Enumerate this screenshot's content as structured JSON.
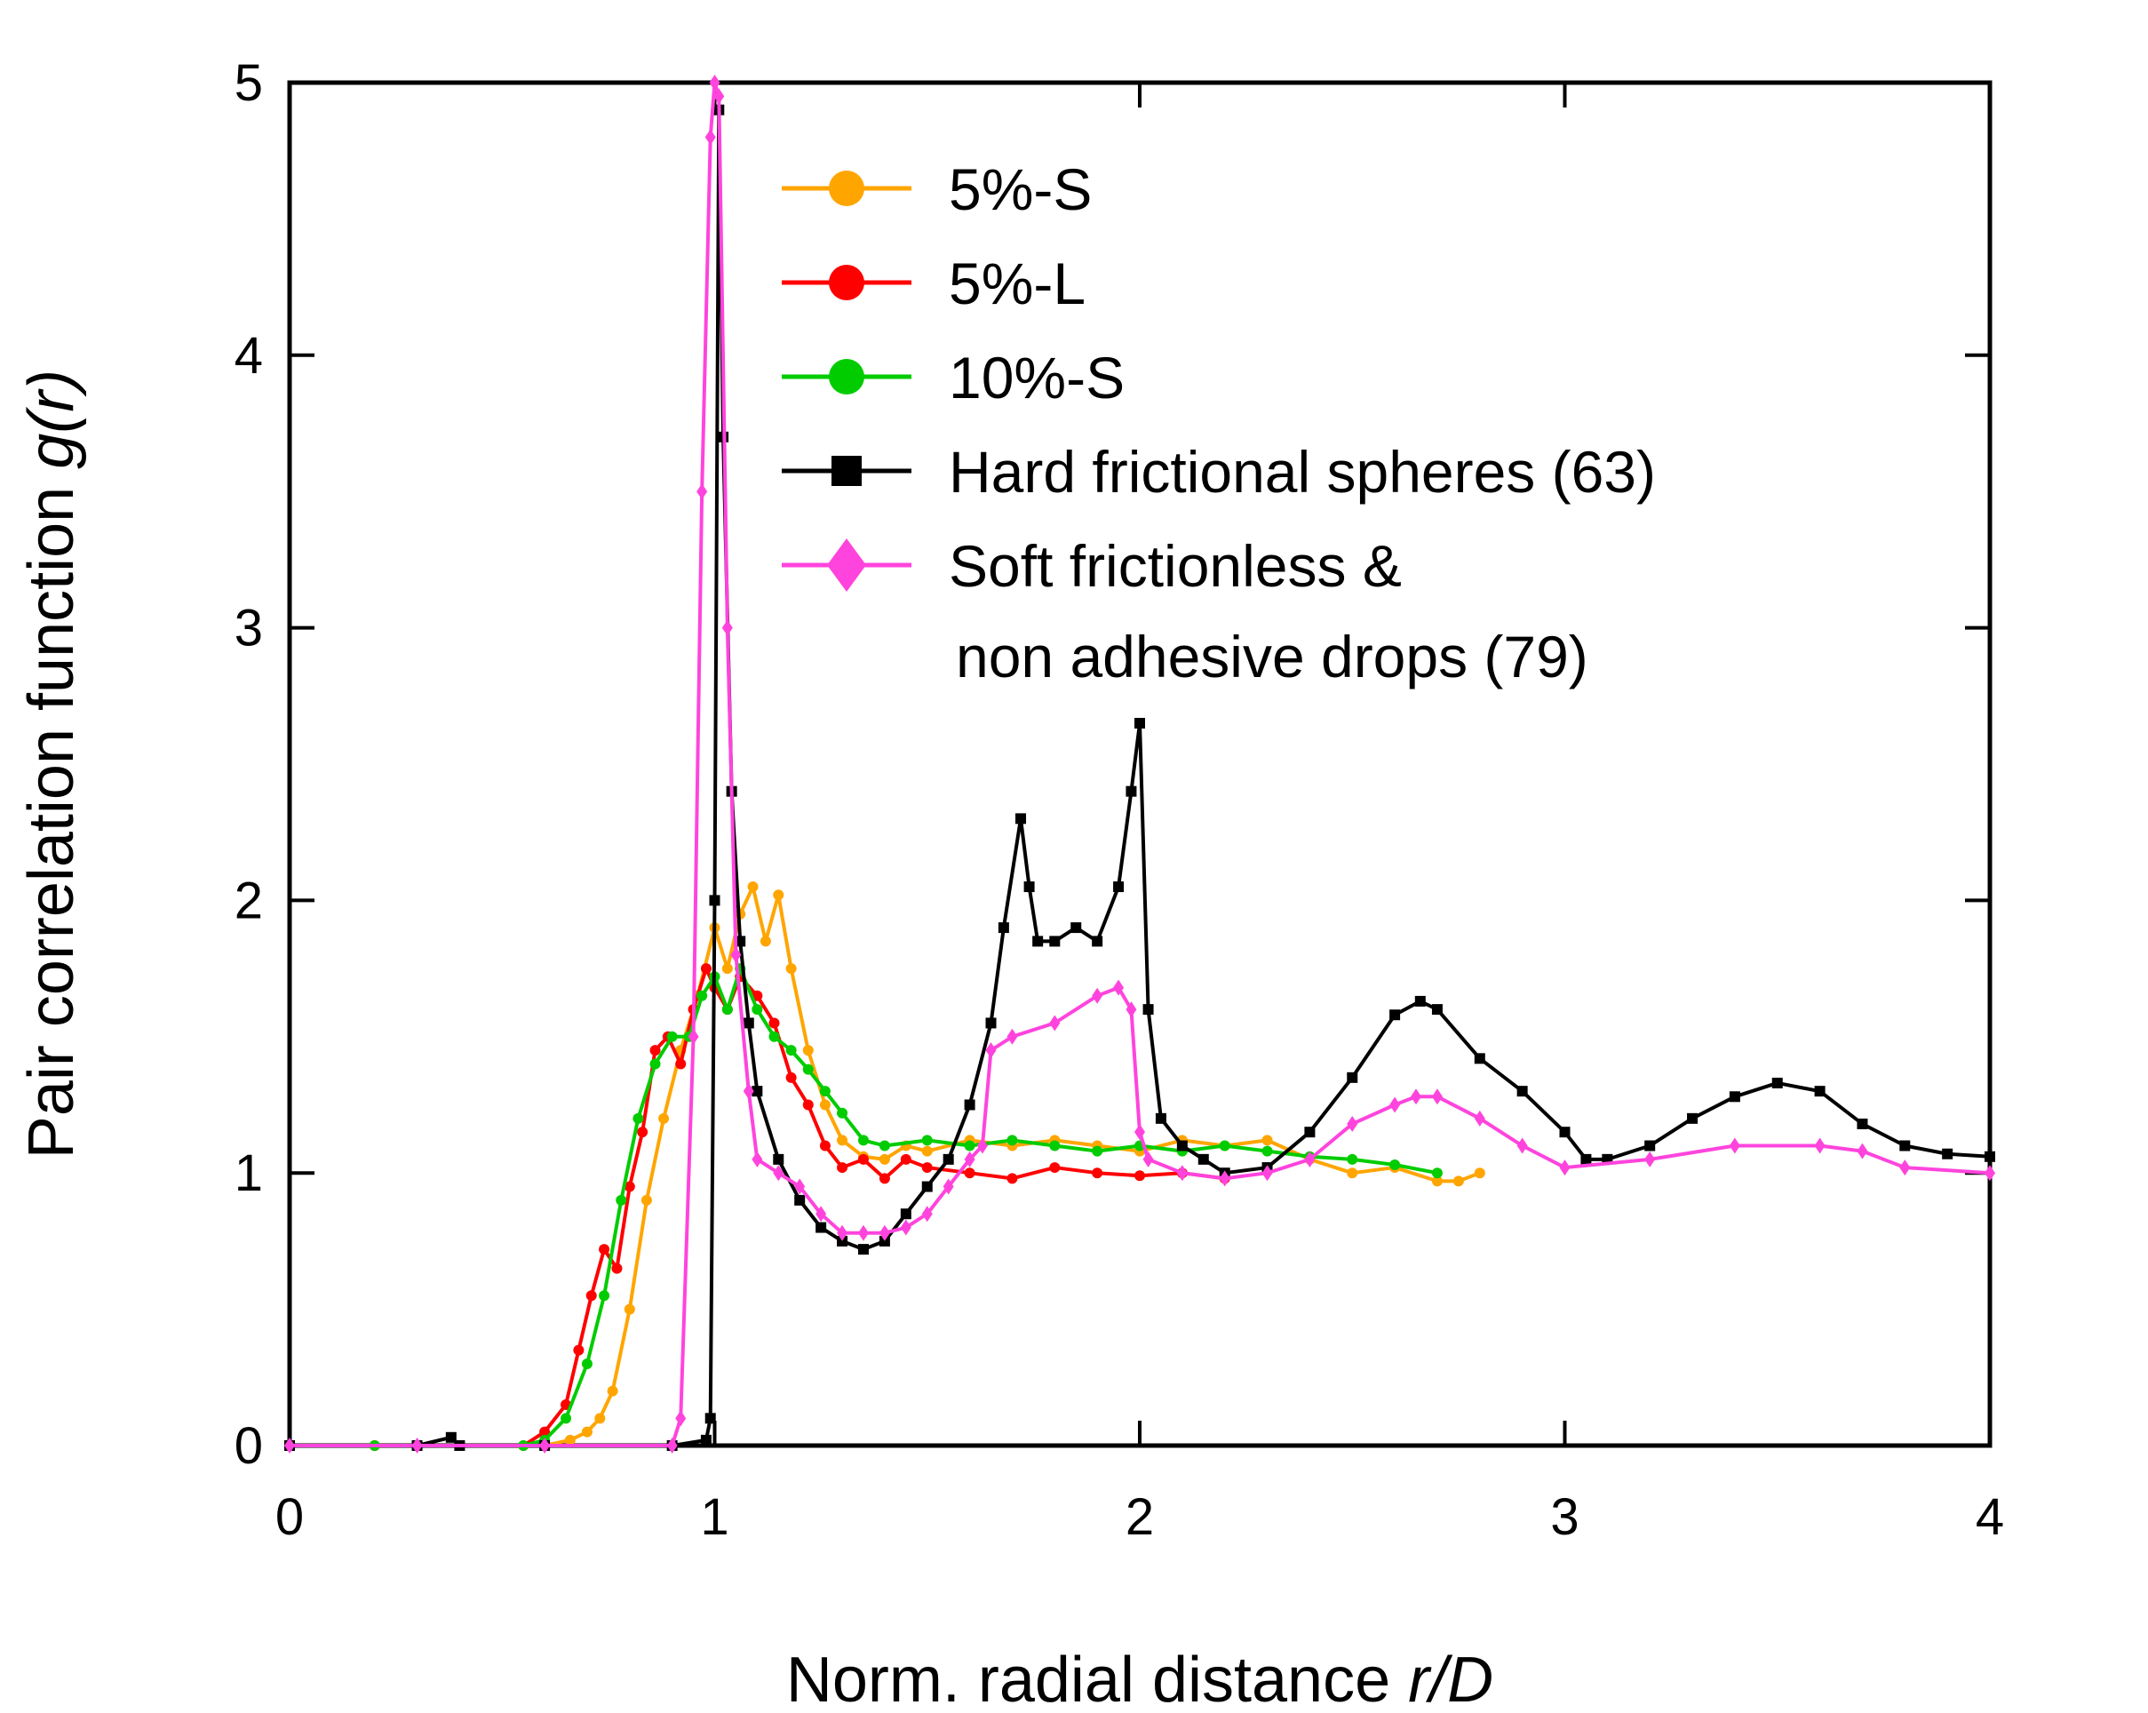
{
  "chart_data": {
    "type": "line",
    "xlabel": {
      "text": "Norm. radial distance ",
      "italic": "r/D"
    },
    "ylabel": {
      "text": "Pair correlation function ",
      "italic": "g(r)"
    },
    "xlim": [
      0,
      4
    ],
    "ylim": [
      0,
      5
    ],
    "xticks": [
      "0",
      "1",
      "2",
      "3",
      "4"
    ],
    "yticks": [
      "0",
      "1",
      "2",
      "3",
      "4",
      "5"
    ],
    "grid": false,
    "legend_position": "top-right",
    "series": [
      {
        "name": "5%-S",
        "color": "#FFA500",
        "marker": "circle",
        "x": [
          0,
          0.2,
          0.4,
          0.6,
          0.66,
          0.7,
          0.73,
          0.76,
          0.8,
          0.84,
          0.88,
          0.92,
          0.96,
          1.0,
          1.03,
          1.06,
          1.09,
          1.12,
          1.15,
          1.18,
          1.22,
          1.26,
          1.3,
          1.35,
          1.4,
          1.45,
          1.5,
          1.6,
          1.7,
          1.8,
          1.9,
          2.0,
          2.1,
          2.2,
          2.3,
          2.4,
          2.5,
          2.6,
          2.7,
          2.75,
          2.8
        ],
        "y": [
          0,
          0,
          0,
          0,
          0.02,
          0.05,
          0.1,
          0.2,
          0.5,
          0.9,
          1.2,
          1.45,
          1.65,
          1.9,
          1.75,
          1.95,
          2.05,
          1.85,
          2.02,
          1.75,
          1.45,
          1.25,
          1.12,
          1.06,
          1.05,
          1.1,
          1.08,
          1.12,
          1.1,
          1.12,
          1.1,
          1.08,
          1.12,
          1.1,
          1.12,
          1.05,
          1.0,
          1.02,
          0.97,
          0.97,
          1.0
        ]
      },
      {
        "name": "5%-L",
        "color": "#FF0000",
        "marker": "circle",
        "x": [
          0,
          0.2,
          0.4,
          0.55,
          0.6,
          0.65,
          0.68,
          0.71,
          0.74,
          0.77,
          0.8,
          0.83,
          0.86,
          0.89,
          0.92,
          0.95,
          0.98,
          1.0,
          1.03,
          1.06,
          1.1,
          1.14,
          1.18,
          1.22,
          1.26,
          1.3,
          1.35,
          1.4,
          1.45,
          1.5,
          1.6,
          1.7,
          1.8,
          1.9,
          2.0,
          2.1,
          2.2
        ],
        "y": [
          0,
          0,
          0,
          0,
          0.05,
          0.15,
          0.35,
          0.55,
          0.72,
          0.65,
          0.95,
          1.15,
          1.45,
          1.5,
          1.4,
          1.6,
          1.75,
          1.68,
          1.6,
          1.72,
          1.65,
          1.55,
          1.35,
          1.25,
          1.1,
          1.02,
          1.05,
          0.98,
          1.05,
          1.02,
          1.0,
          0.98,
          1.02,
          1.0,
          0.99,
          1.0,
          0.98
        ]
      },
      {
        "name": "10%-S",
        "color": "#00CC00",
        "marker": "circle",
        "x": [
          0,
          0.2,
          0.4,
          0.55,
          0.6,
          0.65,
          0.7,
          0.74,
          0.78,
          0.82,
          0.86,
          0.9,
          0.94,
          0.97,
          1.0,
          1.03,
          1.06,
          1.1,
          1.14,
          1.18,
          1.22,
          1.26,
          1.3,
          1.35,
          1.4,
          1.5,
          1.6,
          1.7,
          1.8,
          1.9,
          2.0,
          2.1,
          2.2,
          2.3,
          2.4,
          2.5,
          2.6,
          2.7
        ],
        "y": [
          0,
          0,
          0,
          0,
          0.02,
          0.1,
          0.3,
          0.55,
          0.9,
          1.2,
          1.4,
          1.5,
          1.5,
          1.65,
          1.72,
          1.6,
          1.75,
          1.6,
          1.5,
          1.45,
          1.38,
          1.3,
          1.22,
          1.12,
          1.1,
          1.12,
          1.1,
          1.12,
          1.1,
          1.08,
          1.1,
          1.08,
          1.1,
          1.08,
          1.06,
          1.05,
          1.03,
          1.0
        ]
      },
      {
        "name": "Hard frictional spheres (63)",
        "color": "#000000",
        "marker": "square",
        "x": [
          0,
          0.3,
          0.38,
          0.4,
          0.6,
          0.9,
          0.98,
          0.99,
          1.0,
          1.01,
          1.02,
          1.04,
          1.06,
          1.08,
          1.1,
          1.15,
          1.2,
          1.25,
          1.3,
          1.35,
          1.4,
          1.45,
          1.5,
          1.55,
          1.6,
          1.65,
          1.68,
          1.72,
          1.74,
          1.76,
          1.8,
          1.85,
          1.9,
          1.95,
          1.98,
          2.0,
          2.02,
          2.05,
          2.1,
          2.15,
          2.2,
          2.3,
          2.4,
          2.5,
          2.6,
          2.66,
          2.7,
          2.8,
          2.9,
          3.0,
          3.05,
          3.1,
          3.2,
          3.3,
          3.4,
          3.5,
          3.6,
          3.7,
          3.8,
          3.9,
          4.0
        ],
        "y": [
          0,
          0,
          0.03,
          0,
          0,
          0,
          0.02,
          0.1,
          2.0,
          4.9,
          3.7,
          2.4,
          1.85,
          1.55,
          1.3,
          1.05,
          0.9,
          0.8,
          0.75,
          0.72,
          0.75,
          0.85,
          0.95,
          1.05,
          1.25,
          1.55,
          1.9,
          2.3,
          2.05,
          1.85,
          1.85,
          1.9,
          1.85,
          2.05,
          2.4,
          2.65,
          1.6,
          1.2,
          1.1,
          1.05,
          1.0,
          1.02,
          1.15,
          1.35,
          1.58,
          1.63,
          1.6,
          1.42,
          1.3,
          1.15,
          1.05,
          1.05,
          1.1,
          1.2,
          1.28,
          1.33,
          1.3,
          1.18,
          1.1,
          1.07,
          1.06
        ]
      },
      {
        "name": "Soft frictionless & non adhesive drops (79)",
        "color": "#FF44DD",
        "marker": "diamond",
        "x": [
          0,
          0.3,
          0.6,
          0.9,
          0.92,
          0.95,
          0.97,
          0.99,
          1.0,
          1.01,
          1.03,
          1.05,
          1.08,
          1.1,
          1.15,
          1.2,
          1.25,
          1.3,
          1.35,
          1.4,
          1.45,
          1.5,
          1.55,
          1.6,
          1.63,
          1.65,
          1.7,
          1.8,
          1.9,
          1.95,
          1.98,
          2.0,
          2.02,
          2.1,
          2.2,
          2.3,
          2.4,
          2.5,
          2.6,
          2.65,
          2.7,
          2.8,
          2.9,
          3.0,
          3.2,
          3.4,
          3.6,
          3.7,
          3.8,
          4.0
        ],
        "y": [
          0,
          0,
          0,
          0,
          0.1,
          1.5,
          3.5,
          4.8,
          5.0,
          4.95,
          3.0,
          1.8,
          1.3,
          1.05,
          1.0,
          0.95,
          0.85,
          0.78,
          0.78,
          0.78,
          0.8,
          0.85,
          0.95,
          1.05,
          1.1,
          1.45,
          1.5,
          1.55,
          1.65,
          1.68,
          1.6,
          1.15,
          1.05,
          1.0,
          0.98,
          1.0,
          1.05,
          1.18,
          1.25,
          1.28,
          1.28,
          1.2,
          1.1,
          1.02,
          1.05,
          1.1,
          1.1,
          1.08,
          1.02,
          1.0
        ]
      }
    ],
    "legend": [
      {
        "label": "5%-S"
      },
      {
        "label": "5%-L"
      },
      {
        "label": "10%-S"
      },
      {
        "label": "Hard frictional spheres (63)"
      },
      {
        "label": "Soft frictionless &",
        "label_line2": "non adhesive drops (79)"
      }
    ]
  }
}
